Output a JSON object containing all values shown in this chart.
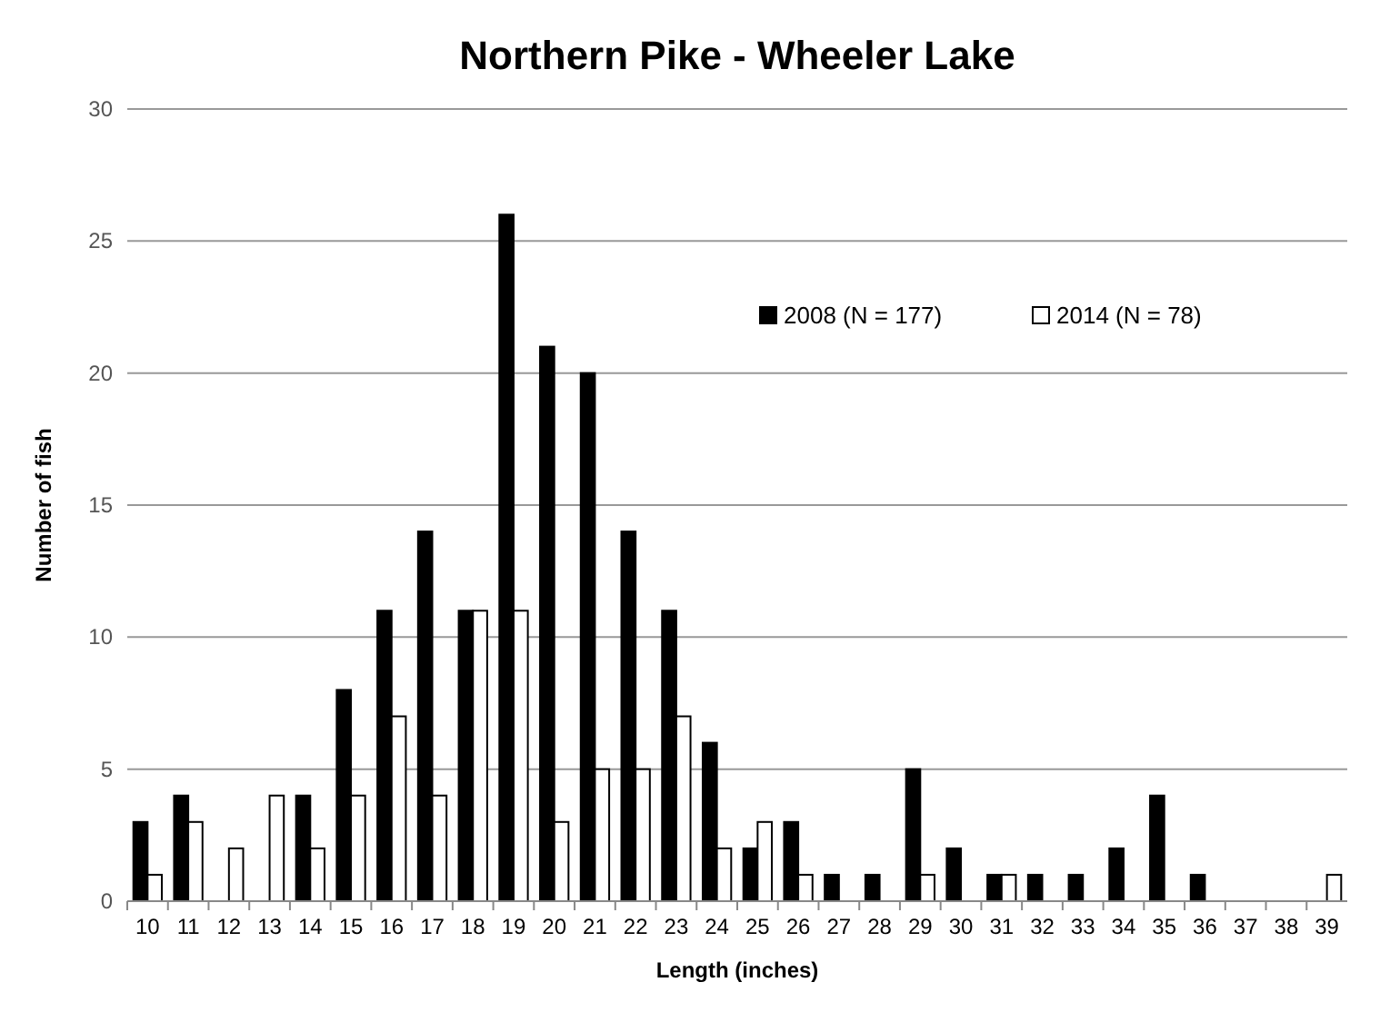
{
  "chart_data": {
    "type": "bar",
    "title": "Northern Pike - Wheeler Lake",
    "xlabel": "Length (inches)",
    "ylabel": "Number of fish",
    "categories": [
      "10",
      "11",
      "12",
      "13",
      "14",
      "15",
      "16",
      "17",
      "18",
      "19",
      "20",
      "21",
      "22",
      "23",
      "24",
      "25",
      "26",
      "27",
      "28",
      "29",
      "30",
      "31",
      "32",
      "33",
      "34",
      "35",
      "36",
      "37",
      "38",
      "39"
    ],
    "series": [
      {
        "name": "2008 (N = 177)",
        "color": "#000000",
        "values": [
          3,
          4,
          0,
          0,
          4,
          8,
          11,
          14,
          11,
          26,
          21,
          20,
          14,
          11,
          6,
          2,
          3,
          1,
          1,
          5,
          2,
          1,
          1,
          1,
          2,
          4,
          1,
          0,
          0,
          0
        ]
      },
      {
        "name": "2014 (N = 78)",
        "color": "#ffffff",
        "values": [
          1,
          3,
          2,
          4,
          2,
          4,
          7,
          4,
          11,
          11,
          3,
          5,
          5,
          7,
          2,
          3,
          1,
          0,
          0,
          1,
          0,
          1,
          0,
          0,
          0,
          0,
          0,
          0,
          0,
          1
        ]
      }
    ],
    "ylim": [
      0,
      30
    ],
    "yticks": [
      0,
      5,
      10,
      15,
      20,
      25,
      30
    ],
    "grid": "y",
    "legend": "top right"
  }
}
